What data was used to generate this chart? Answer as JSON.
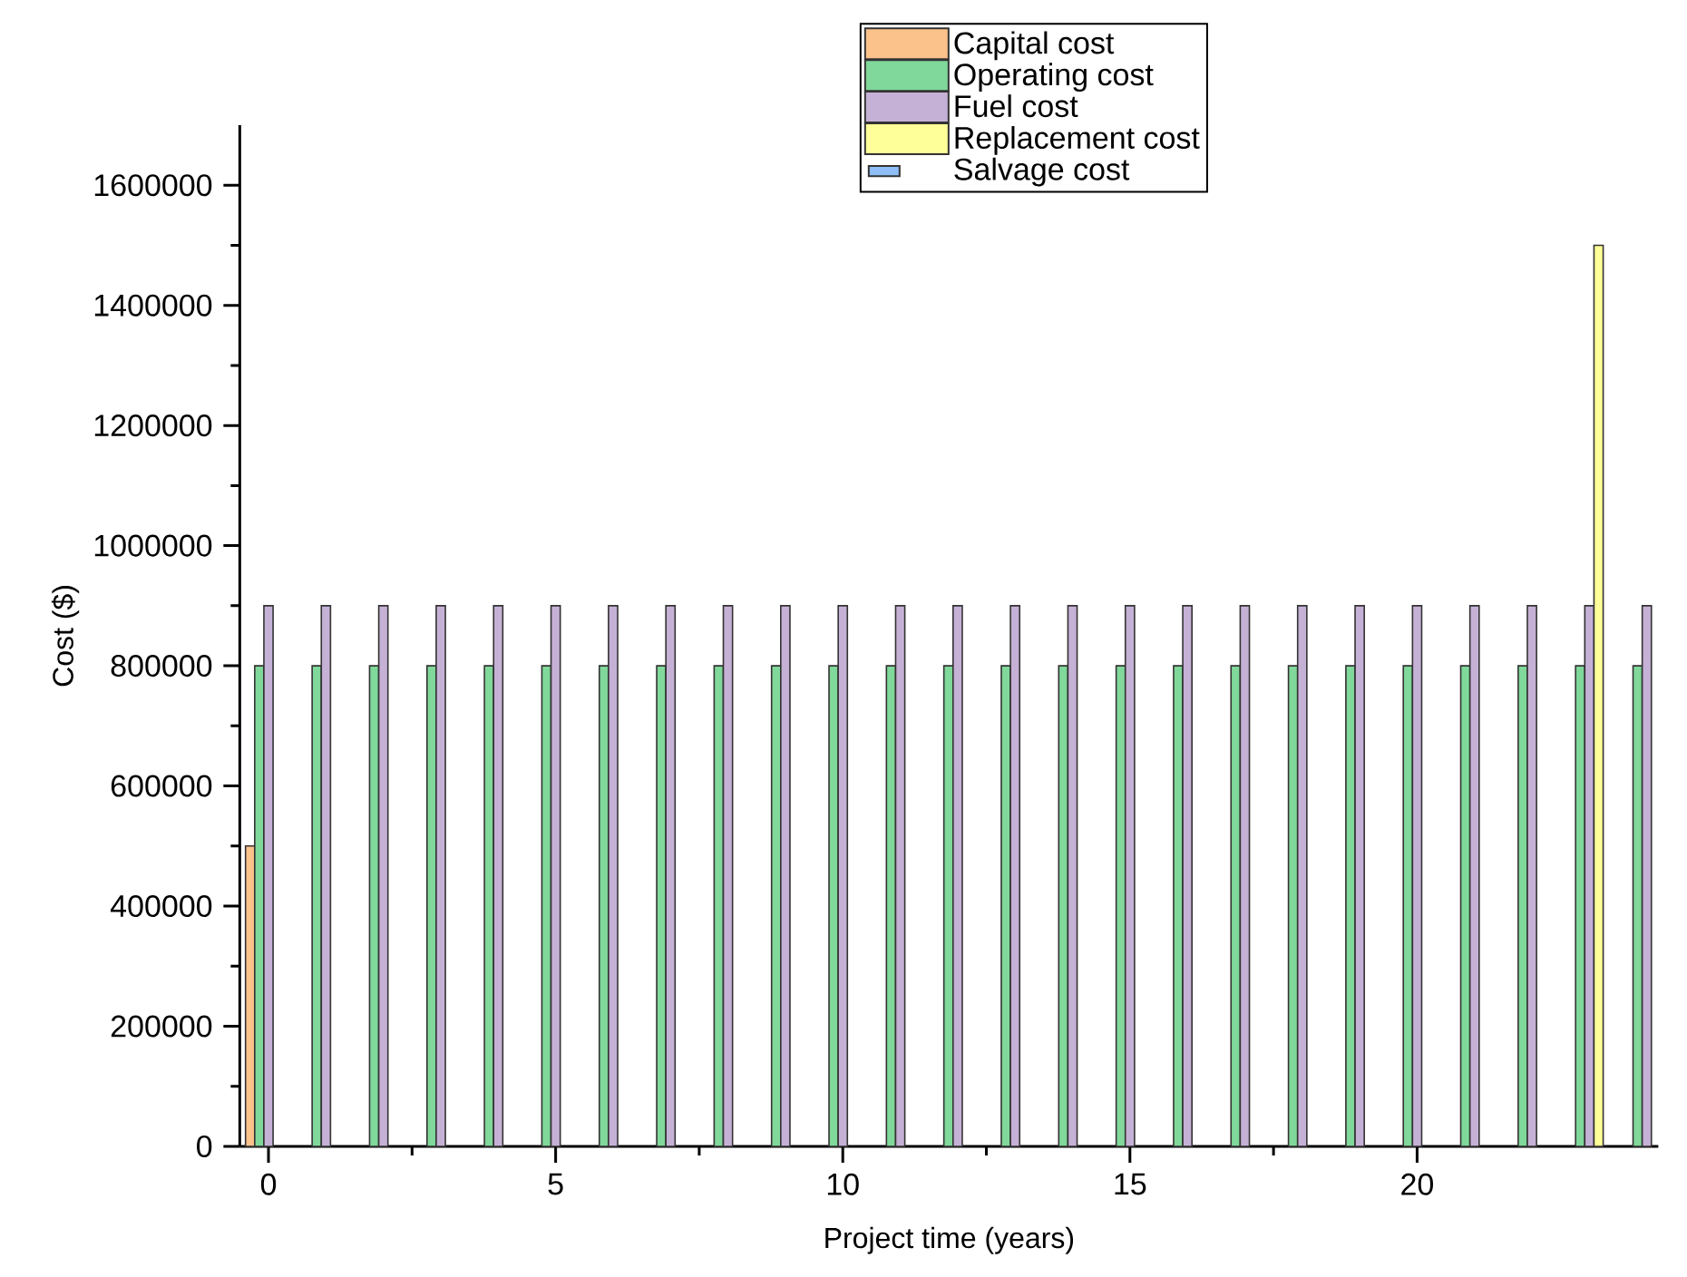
{
  "chart_data": {
    "type": "bar",
    "xlabel": "Project time (years)",
    "ylabel": "Cost ($)",
    "x": [
      0,
      1,
      2,
      3,
      4,
      5,
      6,
      7,
      8,
      9,
      10,
      11,
      12,
      13,
      14,
      15,
      16,
      17,
      18,
      19,
      20,
      21,
      22,
      23,
      24
    ],
    "series": [
      {
        "name": "Capital cost",
        "color": "#fbc28c",
        "values": [
          500000,
          null,
          null,
          null,
          null,
          null,
          null,
          null,
          null,
          null,
          null,
          null,
          null,
          null,
          null,
          null,
          null,
          null,
          null,
          null,
          null,
          null,
          null,
          null,
          null
        ]
      },
      {
        "name": "Operating cost",
        "color": "#80d89a",
        "values": [
          800000,
          800000,
          800000,
          800000,
          800000,
          800000,
          800000,
          800000,
          800000,
          800000,
          800000,
          800000,
          800000,
          800000,
          800000,
          800000,
          800000,
          800000,
          800000,
          800000,
          800000,
          800000,
          800000,
          800000,
          800000
        ]
      },
      {
        "name": "Fuel cost",
        "color": "#c6b1d6",
        "values": [
          900000,
          900000,
          900000,
          900000,
          900000,
          900000,
          900000,
          900000,
          900000,
          900000,
          900000,
          900000,
          900000,
          900000,
          900000,
          900000,
          900000,
          900000,
          900000,
          900000,
          900000,
          900000,
          900000,
          900000,
          900000
        ]
      },
      {
        "name": "Replacement cost",
        "color": "#ffff99",
        "values": [
          null,
          null,
          null,
          null,
          null,
          null,
          null,
          null,
          null,
          null,
          null,
          null,
          null,
          null,
          null,
          null,
          null,
          null,
          null,
          null,
          null,
          null,
          null,
          1500000,
          null
        ]
      },
      {
        "name": "Salvage cost",
        "color": "#8ebef5",
        "values": [
          null,
          null,
          null,
          null,
          null,
          null,
          null,
          null,
          null,
          null,
          null,
          null,
          null,
          null,
          null,
          null,
          null,
          null,
          null,
          null,
          null,
          null,
          null,
          null,
          null
        ]
      }
    ],
    "xlim": [
      -0.5,
      24.2
    ],
    "ylim": [
      0,
      1700000
    ],
    "xticks": [
      0,
      5,
      10,
      15,
      20
    ],
    "yticks": [
      0,
      200000,
      400000,
      600000,
      800000,
      1000000,
      1200000,
      1400000,
      1600000
    ],
    "legend": "top"
  }
}
